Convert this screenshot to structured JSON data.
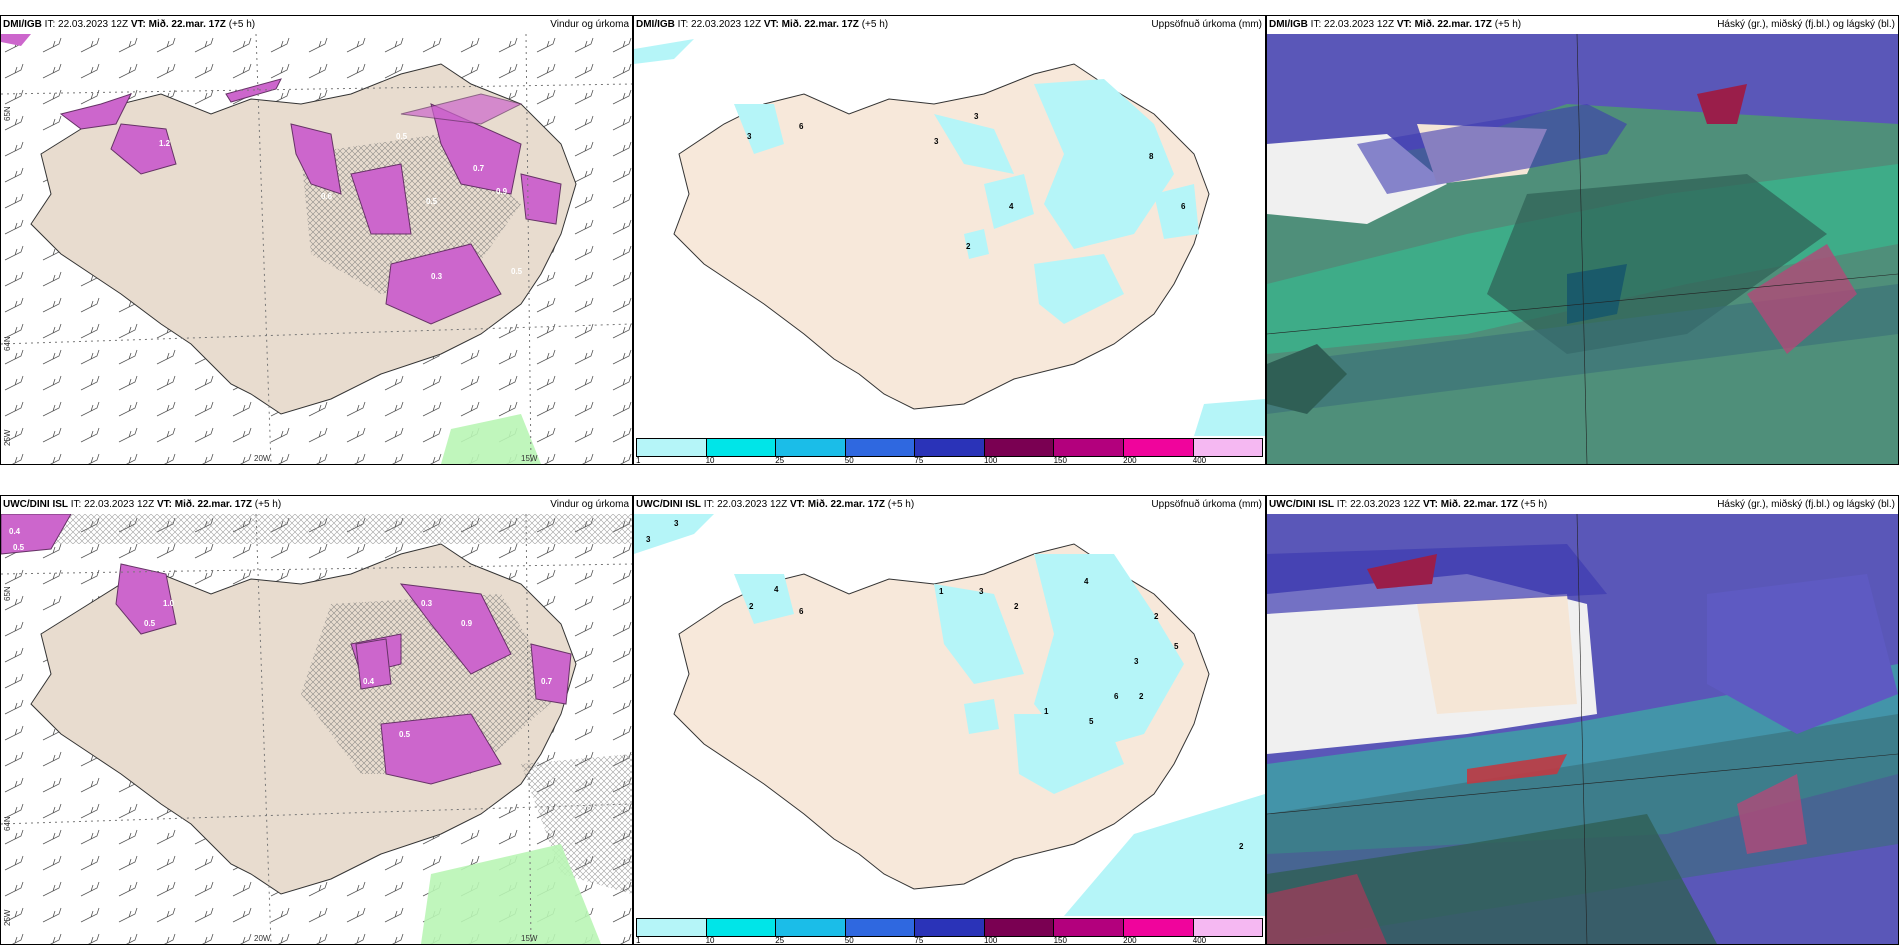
{
  "panels": [
    {
      "model": "DMI/IGB",
      "it_label": "IT:",
      "it": "22.03.2023 12Z",
      "vt_label": "VT:",
      "vt": "Mið. 22.mar. 17Z",
      "lead": "(+5 h)",
      "title": "Vindur og úrkoma",
      "axis": {
        "lon_a": "20W",
        "lon_b": "15W",
        "lat_a": "65N",
        "lat_b": "64N",
        "lon_left": "25W"
      },
      "labels": [
        "1.2",
        "0.5",
        "0.7",
        "0.6",
        "0.9",
        "0.5",
        "0.3",
        "0.5"
      ]
    },
    {
      "model": "DMI/IGB",
      "it_label": "IT:",
      "it": "22.03.2023 12Z",
      "vt_label": "VT:",
      "vt": "Mið. 22.mar. 17Z",
      "lead": "(+5 h)",
      "title": "Uppsöfnuð úrkoma (mm)",
      "numbers": [
        "3",
        "6",
        "3",
        "3",
        "8",
        "4",
        "2",
        "6"
      ]
    },
    {
      "model": "DMI/IGB",
      "it_label": "IT:",
      "it": "22.03.2023 12Z",
      "vt_label": "VT:",
      "vt": "Mið. 22.mar. 17Z",
      "lead": "(+5 h)",
      "title": "Háský (gr.), miðský (fj.bl.) og lágský (bl.)"
    },
    {
      "model": "UWC/DINI ISL",
      "it_label": "IT:",
      "it": "22.03.2023 12Z",
      "vt_label": "VT:",
      "vt": "Mið. 22.mar. 17Z",
      "lead": "(+5 h)",
      "title": "Vindur og úrkoma",
      "axis": {
        "lon_a": "20W",
        "lon_b": "15W",
        "lat_a": "65N",
        "lat_b": "64N",
        "lon_left": "25W"
      },
      "labels": [
        "0.4",
        "0.5",
        "1.0",
        "0.5",
        "0.9",
        "0.3",
        "0.4",
        "0.5",
        "0.7"
      ]
    },
    {
      "model": "UWC/DINI ISL",
      "it_label": "IT:",
      "it": "22.03.2023 12Z",
      "vt_label": "VT:",
      "vt": "Mið. 22.mar. 17Z",
      "lead": "(+5 h)",
      "title": "Uppsöfnuð úrkoma (mm)",
      "numbers": [
        "3",
        "3",
        "2",
        "4",
        "6",
        "1",
        "3",
        "2",
        "4",
        "2",
        "5",
        "3",
        "5",
        "1",
        "6",
        "2",
        "2"
      ]
    },
    {
      "model": "UWC/DINI ISL",
      "it_label": "IT:",
      "it": "22.03.2023 12Z",
      "vt_label": "VT:",
      "vt": "Mið. 22.mar. 17Z",
      "lead": "(+5 h)",
      "title": "Háský (gr.), miðský (fj.bl.) og lágský (bl.)"
    }
  ],
  "colorbar": {
    "ticks": [
      "1",
      "10",
      "25",
      "50",
      "75",
      "100",
      "150",
      "200",
      "400"
    ],
    "colors": [
      "#b5f5f8",
      "#00e5e8",
      "#1bbde8",
      "#2f68e0",
      "#2a33b8",
      "#7a0052",
      "#b3007d",
      "#f0049c",
      "#f5b8f2"
    ]
  },
  "colors": {
    "land": "#f5e6d6",
    "precip_light": "#b5f5f8",
    "wind_precip": "#cc66cc",
    "cloud_high": "#5a57b8",
    "cloud_mid": "#5c8a78",
    "cloud_low": "#2bd19a"
  }
}
